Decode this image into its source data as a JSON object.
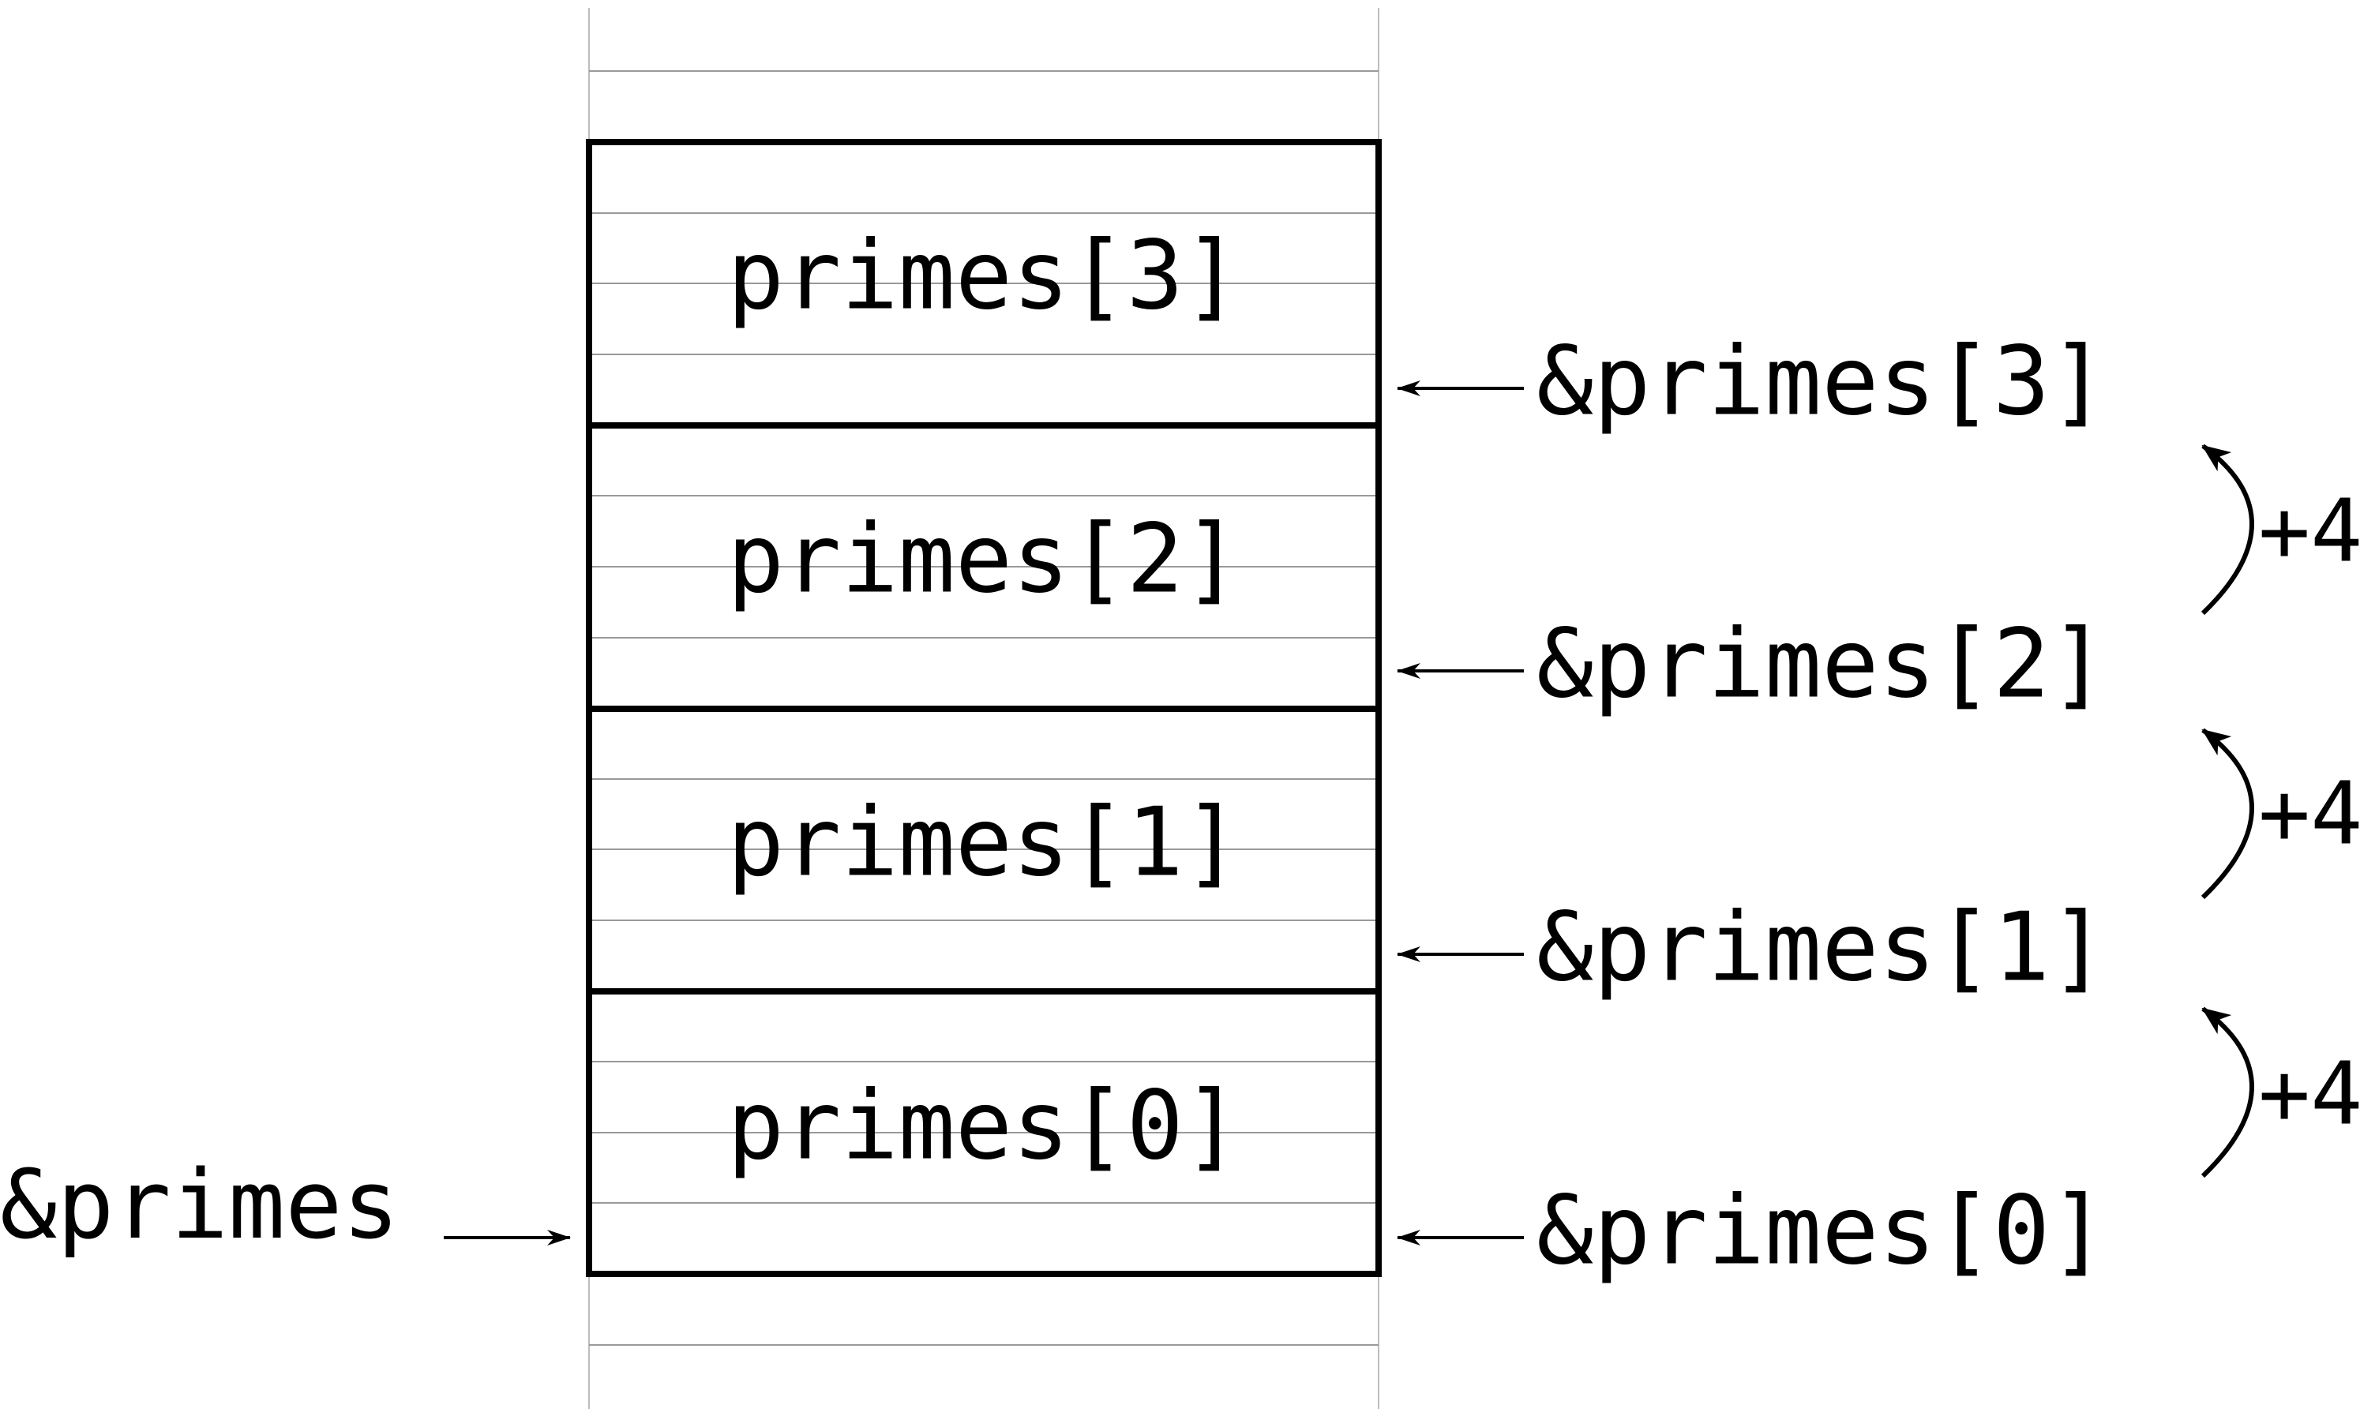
{
  "stack": {
    "cells": [
      {
        "label": "primes[0]",
        "address": "&primes[0]"
      },
      {
        "label": "primes[1]",
        "address": "&primes[1]"
      },
      {
        "label": "primes[2]",
        "address": "&primes[2]"
      },
      {
        "label": "primes[3]",
        "address": "&primes[3]"
      }
    ],
    "base_pointer": "&primes",
    "offsets": [
      "+4",
      "+4",
      "+4"
    ]
  }
}
